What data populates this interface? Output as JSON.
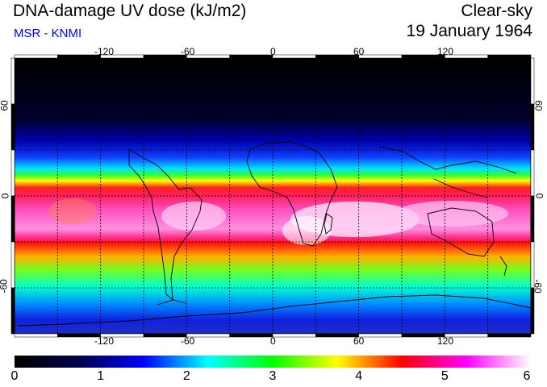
{
  "title": "DNA-damage UV dose (kJ/m2)",
  "subtitle": "MSR - KNMI",
  "condition": "Clear-sky",
  "date": "19 January 1964",
  "map": {
    "lon_ticks": [
      "-120",
      "-60",
      "0",
      "60",
      "120"
    ],
    "lat_ticks": [
      "60",
      "0",
      "-60"
    ]
  },
  "colorbar": {
    "labels": [
      "0",
      "1",
      "2",
      "3",
      "4",
      "5",
      "6"
    ],
    "min": 0,
    "max": 6,
    "colors": [
      "#000000",
      "#00004c",
      "#0000ff",
      "#00ffff",
      "#00ff00",
      "#ffff00",
      "#ff0000",
      "#ff00ff",
      "#ffffff"
    ]
  }
}
